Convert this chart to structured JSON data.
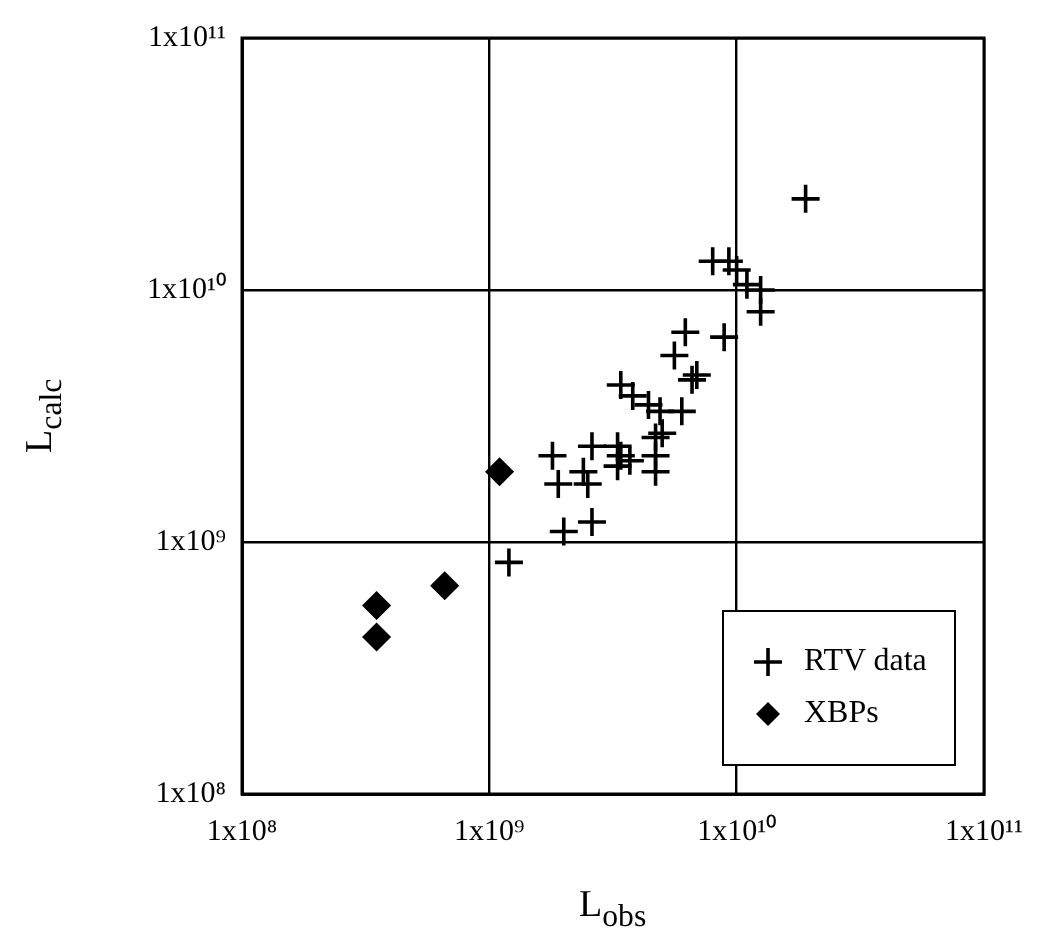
{
  "chart_data": {
    "type": "scatter",
    "xlabel": "L$_{obs}$",
    "ylabel": "L$_{calc}$",
    "log": "xy",
    "grid": true,
    "legend": "bottom right",
    "xlim": [
      100000000.0,
      100000000000.0
    ],
    "ylim": [
      100000000.0,
      100000000000.0
    ],
    "xticks": [
      {
        "value": 100000000.0,
        "label": "1x10⁸"
      },
      {
        "value": 1000000000.0,
        "label": "1x10⁹"
      },
      {
        "value": 10000000000.0,
        "label": "1x10¹⁰"
      },
      {
        "value": 100000000000.0,
        "label": "1x10¹¹"
      }
    ],
    "yticks": [
      {
        "value": 100000000.0,
        "label": "1x10⁸"
      },
      {
        "value": 1000000000.0,
        "label": "1x10⁹"
      },
      {
        "value": 10000000000.0,
        "label": "1x10¹⁰"
      },
      {
        "value": 100000000000.0,
        "label": "1x10¹¹"
      }
    ],
    "series": [
      {
        "name": "RTV data",
        "color": "#000000",
        "marker": "cross",
        "x": [
          1200000000.0,
          2000000000.0,
          2600000000.0,
          1800000000.0,
          1900000000.0,
          2400000000.0,
          2500000000.0,
          2600000000.0,
          3300000000.0,
          3400000000.0,
          3300000000.0,
          3700000000.0,
          3400000000.0,
          3800000000.0,
          4400000000.0,
          4900000000.0,
          4700000000.0,
          4700000000.0,
          4700000000.0,
          5000000000.0,
          6000000000.0,
          5600000000.0,
          6200000000.0,
          8900000000.0,
          6600000000.0,
          6900000000.0,
          8000000000.0,
          9300000000.0,
          11000000000.0,
          12500000000.0,
          12500000000.0,
          10000000000.0,
          19000000000.0
        ],
        "values": [
          830000000.0,
          1100000000.0,
          1200000000.0,
          2200000000.0,
          1700000000.0,
          1900000000.0,
          1700000000.0,
          2400000000.0,
          2400000000.0,
          2200000000.0,
          2000000000.0,
          2100000000.0,
          4200000000.0,
          3800000000.0,
          3500000000.0,
          3300000000.0,
          2600000000.0,
          2200000000.0,
          1900000000.0,
          2700000000.0,
          3300000000.0,
          5500000000.0,
          6800000000.0,
          6500000000.0,
          4400000000.0,
          4600000000.0,
          13000000000.0,
          13000000000.0,
          10500000000.0,
          10000000000.0,
          8200000000.0,
          12000000000.0,
          23000000000.0
        ]
      },
      {
        "name": "XBPs",
        "color": "#000000",
        "marker": "diamond",
        "x": [
          1100000000.0,
          660000000.0,
          350000000.0,
          350000000.0
        ],
        "values": [
          1900000000.0,
          670000000.0,
          560000000.0,
          420000000.0
        ]
      }
    ]
  }
}
